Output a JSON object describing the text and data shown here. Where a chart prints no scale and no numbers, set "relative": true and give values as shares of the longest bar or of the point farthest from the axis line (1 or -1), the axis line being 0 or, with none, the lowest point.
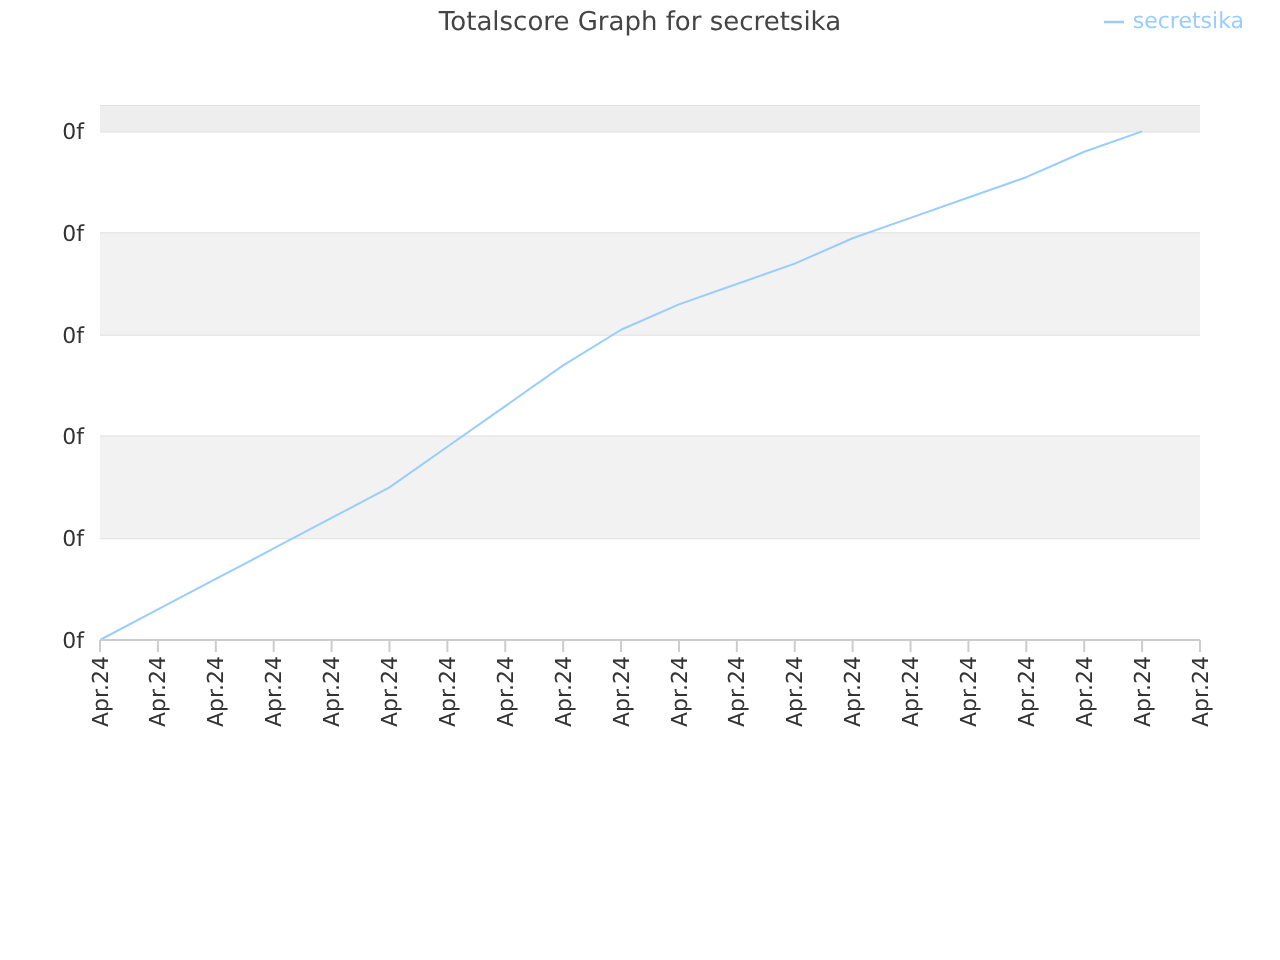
{
  "chart_data": {
    "type": "line",
    "title": "Totalscore Graph for secretsika",
    "categories": [
      "Apr.24",
      "Apr.24",
      "Apr.24",
      "Apr.24",
      "Apr.24",
      "Apr.24",
      "Apr.24",
      "Apr.24",
      "Apr.24",
      "Apr.24",
      "Apr.24",
      "Apr.24",
      "Apr.24",
      "Apr.24",
      "Apr.24",
      "Apr.24",
      "Apr.24",
      "Apr.24",
      "Apr.24",
      "Apr.24"
    ],
    "series": [
      {
        "name": "secretsika",
        "color": "#99ccff",
        "values": [
          0,
          0.06,
          0.12,
          0.18,
          0.24,
          0.3,
          0.38,
          0.46,
          0.54,
          0.61,
          0.66,
          0.7,
          0.74,
          0.79,
          0.83,
          0.87,
          0.91,
          0.96,
          1,
          null
        ]
      }
    ],
    "relative": true,
    "annotations": [
      "0f",
      "0f",
      "0f",
      "0f",
      "0f",
      "0f"
    ],
    "bands": [
      {
        "axis": "y",
        "from": 0.2,
        "to": 0.4,
        "color": "#f2f2f2"
      },
      {
        "axis": "y",
        "from": 0.6,
        "to": 0.8,
        "color": "#f2f2f2"
      },
      {
        "axis": "y",
        "from": 1,
        "to": 1.05,
        "color": "#eeeeee"
      }
    ],
    "grid": "y",
    "legend": "top right",
    "marker": "none",
    "line_style": "solid"
  }
}
